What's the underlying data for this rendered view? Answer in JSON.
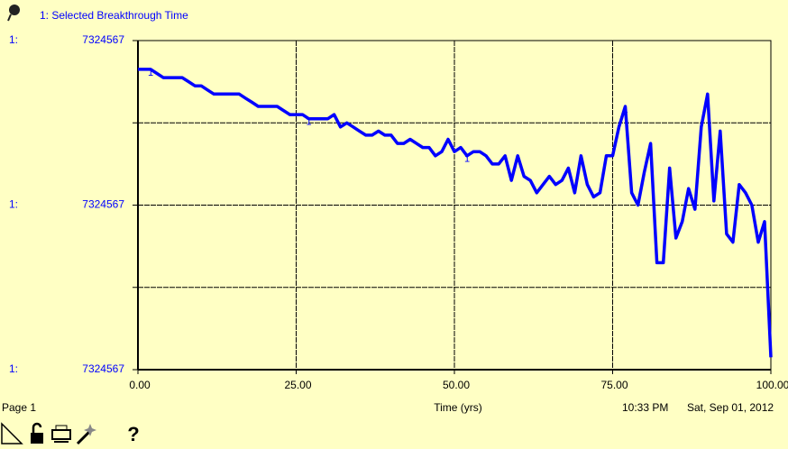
{
  "chart_data": {
    "type": "line",
    "y_axis_marker": "1:",
    "xlabel": "Time (yrs)",
    "xlim": [
      0,
      100
    ],
    "xticks": [
      {
        "value": 0,
        "label": "0.00"
      },
      {
        "value": 25,
        "label": "25.00"
      },
      {
        "value": 50,
        "label": "50.00"
      },
      {
        "value": 75,
        "label": "75.00"
      },
      {
        "value": 100,
        "label": "100.00"
      }
    ],
    "ylim": [
      7324566.6,
      7324567.4
    ],
    "yticks": [
      {
        "value": 7324566.6,
        "label": "7324567"
      },
      {
        "value": 7324567.0,
        "label": "7324567"
      },
      {
        "value": 7324567.4,
        "label": "7324567"
      }
    ],
    "yminor": [
      7324566.8,
      7324567.2
    ],
    "grid": true,
    "x": [
      0,
      1,
      2,
      3,
      4,
      5,
      6,
      7,
      8,
      9,
      10,
      11,
      12,
      13,
      14,
      15,
      16,
      17,
      18,
      19,
      20,
      21,
      22,
      23,
      24,
      25,
      26,
      27,
      28,
      29,
      30,
      31,
      32,
      33,
      34,
      35,
      36,
      37,
      38,
      39,
      40,
      41,
      42,
      43,
      44,
      45,
      46,
      47,
      48,
      49,
      50,
      51,
      52,
      53,
      54,
      55,
      56,
      57,
      58,
      59,
      60,
      61,
      62,
      63,
      64,
      65,
      66,
      67,
      68,
      69,
      70,
      71,
      72,
      73,
      74,
      75,
      76,
      77,
      78,
      79,
      80,
      81,
      82,
      83,
      84,
      85,
      86,
      87,
      88,
      89,
      90,
      91,
      92,
      93,
      94,
      95,
      96,
      97,
      98,
      99,
      100
    ],
    "series": [
      {
        "name": "1: Selected Breakthrough Time",
        "marker": "1",
        "color": "#0000ff",
        "values": [
          7324567.33,
          7324567.33,
          7324567.33,
          7324567.32,
          7324567.31,
          7324567.31,
          7324567.31,
          7324567.31,
          7324567.3,
          7324567.29,
          7324567.29,
          7324567.28,
          7324567.27,
          7324567.27,
          7324567.27,
          7324567.27,
          7324567.27,
          7324567.26,
          7324567.25,
          7324567.24,
          7324567.24,
          7324567.24,
          7324567.24,
          7324567.23,
          7324567.22,
          7324567.22,
          7324567.22,
          7324567.21,
          7324567.21,
          7324567.21,
          7324567.21,
          7324567.22,
          7324567.19,
          7324567.2,
          7324567.19,
          7324567.18,
          7324567.17,
          7324567.17,
          7324567.18,
          7324567.17,
          7324567.17,
          7324567.15,
          7324567.15,
          7324567.16,
          7324567.15,
          7324567.14,
          7324567.14,
          7324567.12,
          7324567.13,
          7324567.16,
          7324567.13,
          7324567.14,
          7324567.12,
          7324567.13,
          7324567.13,
          7324567.12,
          7324567.1,
          7324567.1,
          7324567.12,
          7324567.06,
          7324567.12,
          7324567.07,
          7324567.06,
          7324567.03,
          7324567.05,
          7324567.07,
          7324567.05,
          7324567.06,
          7324567.09,
          7324567.03,
          7324567.12,
          7324567.05,
          7324567.02,
          7324567.03,
          7324567.12,
          7324567.12,
          7324567.19,
          7324567.24,
          7324567.03,
          7324567.0,
          7324567.08,
          7324567.15,
          7324566.86,
          7324566.86,
          7324567.09,
          7324566.92,
          7324566.96,
          7324567.04,
          7324566.99,
          7324567.19,
          7324567.27,
          7324567.01,
          7324567.18,
          7324566.93,
          7324566.91,
          7324567.05,
          7324567.03,
          7324567.0,
          7324566.91,
          7324566.96,
          7324566.63
        ]
      }
    ]
  },
  "footer": {
    "page": "Page 1",
    "time": "10:33 PM",
    "date": "Sat, Sep 01, 2012"
  },
  "toolbar": {
    "help": "?"
  }
}
